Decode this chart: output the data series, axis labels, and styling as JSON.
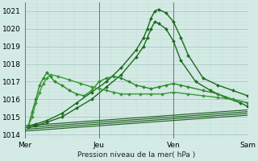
{
  "title": "Pression niveau de la mer( hPa )",
  "background_color": "#d4eae5",
  "grid_color_major": "#a8c8c2",
  "grid_color_minor": "#c0dbd6",
  "xlim": [
    0,
    3
  ],
  "ylim": [
    1013.8,
    1021.5
  ],
  "yticks": [
    1014,
    1015,
    1016,
    1017,
    1018,
    1019,
    1020,
    1021
  ],
  "xtick_labels": [
    "Mer",
    "Jeu",
    "Ven",
    "Sam"
  ],
  "xtick_positions": [
    0,
    1,
    2,
    3
  ],
  "series": [
    {
      "x": [
        0.05,
        0.15,
        0.3,
        0.5,
        0.7,
        0.9,
        1.1,
        1.3,
        1.5,
        1.6,
        1.65,
        1.7,
        1.75,
        1.8,
        1.9,
        2.0,
        2.1,
        2.2,
        2.4,
        2.6,
        2.8,
        3.0
      ],
      "y": [
        1014.5,
        1014.6,
        1014.8,
        1015.2,
        1015.8,
        1016.4,
        1017.0,
        1017.8,
        1018.8,
        1019.5,
        1020.0,
        1020.6,
        1021.0,
        1021.1,
        1020.9,
        1020.4,
        1019.5,
        1018.5,
        1017.2,
        1016.8,
        1016.5,
        1016.2
      ],
      "marker": "D",
      "lw": 1.0,
      "ms": 2.0,
      "color": "#1a6b1a"
    },
    {
      "x": [
        0.05,
        0.15,
        0.3,
        0.5,
        0.7,
        0.9,
        1.1,
        1.3,
        1.5,
        1.6,
        1.65,
        1.7,
        1.75,
        1.8,
        1.9,
        2.0,
        2.1,
        2.3,
        2.5,
        2.7,
        2.9,
        3.0
      ],
      "y": [
        1014.4,
        1014.5,
        1014.7,
        1015.0,
        1015.5,
        1016.0,
        1016.7,
        1017.4,
        1018.4,
        1019.0,
        1019.5,
        1020.0,
        1020.4,
        1020.3,
        1020.0,
        1019.3,
        1018.2,
        1017.0,
        1016.5,
        1016.1,
        1015.8,
        1015.6
      ],
      "marker": "D",
      "lw": 1.0,
      "ms": 2.0,
      "color": "#1a6b1a"
    },
    {
      "x": [
        0.05,
        0.1,
        0.15,
        0.2,
        0.25,
        0.3,
        0.35,
        0.4,
        0.5,
        0.6,
        0.7,
        0.8,
        0.9,
        1.0,
        1.1,
        1.2,
        1.3,
        1.4,
        1.5,
        1.6,
        1.7,
        1.8,
        1.9,
        2.0,
        2.1,
        2.2,
        2.4,
        2.6,
        2.8,
        3.0
      ],
      "y": [
        1014.5,
        1015.3,
        1016.0,
        1016.8,
        1017.2,
        1017.5,
        1017.3,
        1017.0,
        1016.8,
        1016.5,
        1016.3,
        1016.2,
        1016.5,
        1017.0,
        1017.2,
        1017.3,
        1017.2,
        1017.0,
        1016.8,
        1016.7,
        1016.6,
        1016.7,
        1016.8,
        1016.9,
        1016.8,
        1016.7,
        1016.5,
        1016.3,
        1016.0,
        1015.8
      ],
      "marker": "D",
      "lw": 1.0,
      "ms": 2.0,
      "color": "#2d8b2d"
    },
    {
      "x": [
        0.05,
        0.1,
        0.15,
        0.2,
        0.25,
        0.3,
        0.35,
        0.45,
        0.6,
        0.75,
        0.9,
        1.0,
        1.1,
        1.2,
        1.3,
        1.4,
        1.55,
        1.7,
        1.85,
        2.0,
        2.2,
        2.4,
        2.6,
        2.8,
        3.0
      ],
      "y": [
        1014.5,
        1015.0,
        1015.8,
        1016.4,
        1016.9,
        1017.2,
        1017.4,
        1017.3,
        1017.1,
        1016.9,
        1016.7,
        1016.6,
        1016.5,
        1016.4,
        1016.3,
        1016.3,
        1016.3,
        1016.3,
        1016.3,
        1016.4,
        1016.3,
        1016.2,
        1016.1,
        1016.0,
        1015.8
      ],
      "marker": "D",
      "lw": 1.0,
      "ms": 2.0,
      "color": "#3a9a3a"
    },
    {
      "x": [
        0.0,
        0.5,
        1.0,
        1.5,
        2.0,
        2.5,
        3.0
      ],
      "y": [
        1014.5,
        1014.65,
        1014.8,
        1014.95,
        1015.1,
        1015.25,
        1015.4
      ],
      "marker": null,
      "lw": 0.8,
      "ms": 0,
      "color": "#1a5c1a"
    },
    {
      "x": [
        0.0,
        0.5,
        1.0,
        1.5,
        2.0,
        2.5,
        3.0
      ],
      "y": [
        1014.4,
        1014.55,
        1014.7,
        1014.85,
        1015.0,
        1015.15,
        1015.3
      ],
      "marker": null,
      "lw": 0.8,
      "ms": 0,
      "color": "#1a5c1a"
    },
    {
      "x": [
        0.0,
        0.5,
        1.0,
        1.5,
        2.0,
        2.5,
        3.0
      ],
      "y": [
        1014.3,
        1014.45,
        1014.6,
        1014.75,
        1014.9,
        1015.05,
        1015.2
      ],
      "marker": null,
      "lw": 0.8,
      "ms": 0,
      "color": "#1a5c1a"
    },
    {
      "x": [
        0.0,
        0.5,
        1.0,
        1.5,
        2.0,
        2.5,
        3.0
      ],
      "y": [
        1014.2,
        1014.35,
        1014.5,
        1014.65,
        1014.8,
        1014.95,
        1015.1
      ],
      "marker": null,
      "lw": 0.8,
      "ms": 0,
      "color": "#1a5c1a"
    }
  ]
}
